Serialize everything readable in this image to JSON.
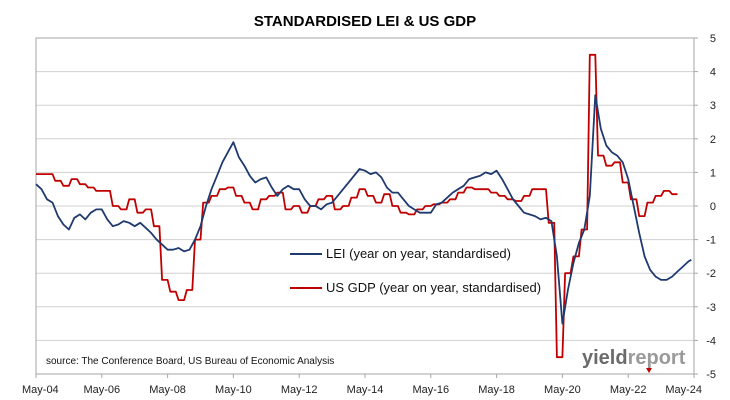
{
  "chart_data": {
    "type": "line",
    "title": "STANDARDISED LEI & US GDP",
    "xlabel": "",
    "ylabel": "",
    "x_ticks": [
      "May-04",
      "May-06",
      "May-08",
      "May-10",
      "May-12",
      "May-14",
      "May-16",
      "May-18",
      "May-20",
      "May-22",
      "May-24"
    ],
    "x_range": [
      "May-04",
      "May-24"
    ],
    "y_ticks": [
      "5",
      "4",
      "3",
      "2",
      "1",
      "0",
      "-1",
      "-2",
      "-3",
      "-4",
      "-5"
    ],
    "ylim": [
      -5,
      5
    ],
    "grid": "horizontal",
    "legend_placement": "center",
    "series": [
      {
        "name": "LEI (year on year, standardised)",
        "color": "#1f3a6e",
        "points": [
          [
            "May-04",
            0.65
          ],
          [
            "Jul-04",
            0.5
          ],
          [
            "Sep-04",
            0.2
          ],
          [
            "Nov-04",
            0.1
          ],
          [
            "Jan-05",
            -0.3
          ],
          [
            "Mar-05",
            -0.55
          ],
          [
            "May-05",
            -0.7
          ],
          [
            "Jul-05",
            -0.35
          ],
          [
            "Sep-05",
            -0.25
          ],
          [
            "Nov-05",
            -0.4
          ],
          [
            "Jan-06",
            -0.2
          ],
          [
            "Mar-06",
            -0.1
          ],
          [
            "May-06",
            -0.1
          ],
          [
            "Jul-06",
            -0.4
          ],
          [
            "Sep-06",
            -0.6
          ],
          [
            "Nov-06",
            -0.55
          ],
          [
            "Jan-07",
            -0.45
          ],
          [
            "Mar-07",
            -0.5
          ],
          [
            "May-07",
            -0.6
          ],
          [
            "Jul-07",
            -0.5
          ],
          [
            "Sep-07",
            -0.65
          ],
          [
            "Nov-07",
            -0.8
          ],
          [
            "Jan-08",
            -1.0
          ],
          [
            "Mar-08",
            -1.15
          ],
          [
            "May-08",
            -1.3
          ],
          [
            "Jul-08",
            -1.3
          ],
          [
            "Sep-08",
            -1.25
          ],
          [
            "Nov-08",
            -1.35
          ],
          [
            "Jan-09",
            -1.3
          ],
          [
            "Mar-09",
            -1.0
          ],
          [
            "May-09",
            -0.6
          ],
          [
            "Jul-09",
            0.0
          ],
          [
            "Sep-09",
            0.5
          ],
          [
            "Nov-09",
            0.9
          ],
          [
            "Jan-10",
            1.3
          ],
          [
            "Mar-10",
            1.6
          ],
          [
            "May-10",
            1.9
          ],
          [
            "Jul-10",
            1.45
          ],
          [
            "Sep-10",
            1.2
          ],
          [
            "Nov-10",
            0.9
          ],
          [
            "Jan-11",
            0.7
          ],
          [
            "Mar-11",
            0.8
          ],
          [
            "May-11",
            0.85
          ],
          [
            "Jul-11",
            0.55
          ],
          [
            "Sep-11",
            0.3
          ],
          [
            "Nov-11",
            0.5
          ],
          [
            "Jan-12",
            0.6
          ],
          [
            "Mar-12",
            0.5
          ],
          [
            "May-12",
            0.5
          ],
          [
            "Jul-12",
            0.2
          ],
          [
            "Sep-12",
            0.0
          ],
          [
            "Nov-12",
            0.0
          ],
          [
            "Jan-13",
            -0.1
          ],
          [
            "Mar-13",
            0.05
          ],
          [
            "May-13",
            0.1
          ],
          [
            "Jul-13",
            0.3
          ],
          [
            "Sep-13",
            0.5
          ],
          [
            "Nov-13",
            0.7
          ],
          [
            "Jan-14",
            0.9
          ],
          [
            "Mar-14",
            1.1
          ],
          [
            "May-14",
            1.05
          ],
          [
            "Jul-14",
            0.95
          ],
          [
            "Sep-14",
            1.0
          ],
          [
            "Nov-14",
            0.85
          ],
          [
            "Jan-15",
            0.55
          ],
          [
            "Mar-15",
            0.4
          ],
          [
            "May-15",
            0.4
          ],
          [
            "Jul-15",
            0.2
          ],
          [
            "Sep-15",
            0.0
          ],
          [
            "Nov-15",
            -0.1
          ],
          [
            "Jan-16",
            -0.2
          ],
          [
            "Mar-16",
            -0.2
          ],
          [
            "May-16",
            -0.2
          ],
          [
            "Jul-16",
            0.05
          ],
          [
            "Sep-16",
            0.1
          ],
          [
            "Nov-16",
            0.25
          ],
          [
            "Jan-17",
            0.4
          ],
          [
            "Mar-17",
            0.5
          ],
          [
            "May-17",
            0.6
          ],
          [
            "Jul-17",
            0.8
          ],
          [
            "Sep-17",
            0.85
          ],
          [
            "Nov-17",
            0.9
          ],
          [
            "Jan-18",
            1.0
          ],
          [
            "Mar-18",
            0.95
          ],
          [
            "May-18",
            1.05
          ],
          [
            "Jul-18",
            0.8
          ],
          [
            "Sep-18",
            0.5
          ],
          [
            "Nov-18",
            0.2
          ],
          [
            "Jan-19",
            0.0
          ],
          [
            "Mar-19",
            -0.2
          ],
          [
            "May-19",
            -0.25
          ],
          [
            "Jul-19",
            -0.3
          ],
          [
            "Sep-19",
            -0.4
          ],
          [
            "Nov-19",
            -0.35
          ],
          [
            "Jan-20",
            -0.45
          ],
          [
            "Mar-20",
            -1.5
          ],
          [
            "May-20",
            -3.5
          ],
          [
            "Jul-20",
            -2.5
          ],
          [
            "Sep-20",
            -1.7
          ],
          [
            "Nov-20",
            -1.1
          ],
          [
            "Jan-21",
            -0.7
          ],
          [
            "Mar-21",
            0.3
          ],
          [
            "May-21",
            3.3
          ],
          [
            "Jul-21",
            2.3
          ],
          [
            "Sep-21",
            1.8
          ],
          [
            "Nov-21",
            1.6
          ],
          [
            "Jan-22",
            1.5
          ],
          [
            "Mar-22",
            1.3
          ],
          [
            "May-22",
            0.8
          ],
          [
            "Jul-22",
            0.0
          ],
          [
            "Sep-22",
            -0.8
          ],
          [
            "Nov-22",
            -1.5
          ],
          [
            "Jan-23",
            -1.9
          ],
          [
            "Mar-23",
            -2.1
          ],
          [
            "May-23",
            -2.2
          ],
          [
            "Jul-23",
            -2.2
          ],
          [
            "Sep-23",
            -2.1
          ],
          [
            "Nov-23",
            -1.95
          ],
          [
            "Jan-24",
            -1.8
          ],
          [
            "Mar-24",
            -1.65
          ],
          [
            "Apr-24",
            -1.6
          ]
        ]
      },
      {
        "name": "US GDP (year on year, standardised)",
        "color": "#c00000",
        "points": [
          [
            "May-04",
            0.95
          ],
          [
            "Nov-04",
            0.95
          ],
          [
            "Dec-04",
            0.75
          ],
          [
            "Feb-05",
            0.75
          ],
          [
            "Mar-05",
            0.6
          ],
          [
            "May-05",
            0.6
          ],
          [
            "Jun-05",
            0.8
          ],
          [
            "Aug-05",
            0.8
          ],
          [
            "Sep-05",
            0.65
          ],
          [
            "Nov-05",
            0.65
          ],
          [
            "Dec-05",
            0.55
          ],
          [
            "Feb-06",
            0.55
          ],
          [
            "Mar-06",
            0.45
          ],
          [
            "Aug-06",
            0.45
          ],
          [
            "Sep-06",
            0.0
          ],
          [
            "Nov-06",
            0.0
          ],
          [
            "Dec-06",
            -0.1
          ],
          [
            "Feb-07",
            -0.1
          ],
          [
            "Mar-07",
            0.2
          ],
          [
            "May-07",
            0.2
          ],
          [
            "Jun-07",
            -0.2
          ],
          [
            "Aug-07",
            -0.2
          ],
          [
            "Sep-07",
            -0.1
          ],
          [
            "Nov-07",
            -0.1
          ],
          [
            "Dec-07",
            -0.6
          ],
          [
            "Feb-08",
            -0.6
          ],
          [
            "Mar-08",
            -2.2
          ],
          [
            "May-08",
            -2.2
          ],
          [
            "Jun-08",
            -2.55
          ],
          [
            "Aug-08",
            -2.55
          ],
          [
            "Sep-08",
            -2.8
          ],
          [
            "Nov-08",
            -2.8
          ],
          [
            "Dec-08",
            -2.5
          ],
          [
            "Feb-09",
            -2.5
          ],
          [
            "Mar-09",
            -1.0
          ],
          [
            "May-09",
            -1.0
          ],
          [
            "Jun-09",
            0.1
          ],
          [
            "Aug-09",
            0.1
          ],
          [
            "Sep-09",
            0.3
          ],
          [
            "Nov-09",
            0.3
          ],
          [
            "Dec-09",
            0.5
          ],
          [
            "Feb-10",
            0.5
          ],
          [
            "Mar-10",
            0.55
          ],
          [
            "May-10",
            0.55
          ],
          [
            "Jun-10",
            0.3
          ],
          [
            "Aug-10",
            0.3
          ],
          [
            "Sep-10",
            0.1
          ],
          [
            "Nov-10",
            0.1
          ],
          [
            "Dec-10",
            -0.1
          ],
          [
            "Feb-11",
            -0.1
          ],
          [
            "Mar-11",
            0.2
          ],
          [
            "May-11",
            0.2
          ],
          [
            "Jun-11",
            0.3
          ],
          [
            "Aug-11",
            0.3
          ],
          [
            "Sep-11",
            0.4
          ],
          [
            "Nov-11",
            0.4
          ],
          [
            "Dec-11",
            -0.1
          ],
          [
            "Feb-12",
            -0.1
          ],
          [
            "Mar-12",
            0.0
          ],
          [
            "May-12",
            0.0
          ],
          [
            "Jun-12",
            -0.2
          ],
          [
            "Aug-12",
            -0.2
          ],
          [
            "Sep-12",
            0.0
          ],
          [
            "Nov-12",
            0.0
          ],
          [
            "Dec-12",
            0.2
          ],
          [
            "Feb-13",
            0.2
          ],
          [
            "Mar-13",
            0.3
          ],
          [
            "May-13",
            0.3
          ],
          [
            "Jun-13",
            -0.1
          ],
          [
            "Aug-13",
            -0.1
          ],
          [
            "Sep-13",
            0.0
          ],
          [
            "Nov-13",
            0.0
          ],
          [
            "Dec-13",
            0.25
          ],
          [
            "Feb-14",
            0.25
          ],
          [
            "Mar-14",
            0.5
          ],
          [
            "May-14",
            0.5
          ],
          [
            "Jun-14",
            0.3
          ],
          [
            "Aug-14",
            0.3
          ],
          [
            "Sep-14",
            0.1
          ],
          [
            "Nov-14",
            0.1
          ],
          [
            "Dec-14",
            0.35
          ],
          [
            "Feb-15",
            0.35
          ],
          [
            "Mar-15",
            0.0
          ],
          [
            "May-15",
            0.0
          ],
          [
            "Jun-15",
            -0.2
          ],
          [
            "Aug-15",
            -0.2
          ],
          [
            "Sep-15",
            -0.25
          ],
          [
            "Nov-15",
            -0.25
          ],
          [
            "Dec-15",
            -0.1
          ],
          [
            "Feb-16",
            -0.1
          ],
          [
            "Mar-16",
            0.0
          ],
          [
            "May-16",
            0.0
          ],
          [
            "Jun-16",
            0.05
          ],
          [
            "Aug-16",
            0.05
          ],
          [
            "Sep-16",
            0.1
          ],
          [
            "Nov-16",
            0.1
          ],
          [
            "Dec-16",
            0.2
          ],
          [
            "Feb-17",
            0.2
          ],
          [
            "Mar-17",
            0.4
          ],
          [
            "May-17",
            0.4
          ],
          [
            "Jun-17",
            0.55
          ],
          [
            "Aug-17",
            0.55
          ],
          [
            "Sep-17",
            0.5
          ],
          [
            "Nov-17",
            0.5
          ],
          [
            "Dec-17",
            0.5
          ],
          [
            "Feb-18",
            0.5
          ],
          [
            "Mar-18",
            0.4
          ],
          [
            "May-18",
            0.4
          ],
          [
            "Jun-18",
            0.3
          ],
          [
            "Aug-18",
            0.3
          ],
          [
            "Sep-18",
            0.2
          ],
          [
            "Nov-18",
            0.2
          ],
          [
            "Dec-18",
            0.15
          ],
          [
            "Feb-19",
            0.15
          ],
          [
            "Mar-19",
            0.3
          ],
          [
            "May-19",
            0.3
          ],
          [
            "Jun-19",
            0.5
          ],
          [
            "Aug-19",
            0.5
          ],
          [
            "Sep-19",
            0.5
          ],
          [
            "Nov-19",
            0.5
          ],
          [
            "Dec-19",
            -0.5
          ],
          [
            "Feb-20",
            -0.5
          ],
          [
            "Mar-20",
            -4.5
          ],
          [
            "May-20",
            -4.5
          ],
          [
            "Jun-20",
            -2.0
          ],
          [
            "Aug-20",
            -2.0
          ],
          [
            "Sep-20",
            -1.5
          ],
          [
            "Nov-20",
            -1.5
          ],
          [
            "Dec-20",
            -0.7
          ],
          [
            "Feb-21",
            -0.7
          ],
          [
            "Mar-21",
            4.5
          ],
          [
            "May-21",
            4.5
          ],
          [
            "Jun-21",
            1.5
          ],
          [
            "Aug-21",
            1.5
          ],
          [
            "Sep-21",
            1.2
          ],
          [
            "Nov-21",
            1.2
          ],
          [
            "Dec-21",
            1.3
          ],
          [
            "Feb-22",
            1.3
          ],
          [
            "Mar-22",
            0.7
          ],
          [
            "May-22",
            0.7
          ],
          [
            "Jun-22",
            0.2
          ],
          [
            "Aug-22",
            0.2
          ],
          [
            "Sep-22",
            -0.3
          ],
          [
            "Nov-22",
            -0.3
          ],
          [
            "Dec-22",
            0.1
          ],
          [
            "Feb-23",
            0.1
          ],
          [
            "Mar-23",
            0.3
          ],
          [
            "May-23",
            0.3
          ],
          [
            "Jun-23",
            0.45
          ],
          [
            "Aug-23",
            0.45
          ],
          [
            "Sep-23",
            0.35
          ],
          [
            "Nov-23",
            0.35
          ]
        ]
      }
    ],
    "source": "source: The Conference Board, US Bureau of Economic Analysis",
    "logo": {
      "part1": "yield",
      "part2": "report",
      "text": "yieldreport"
    }
  }
}
